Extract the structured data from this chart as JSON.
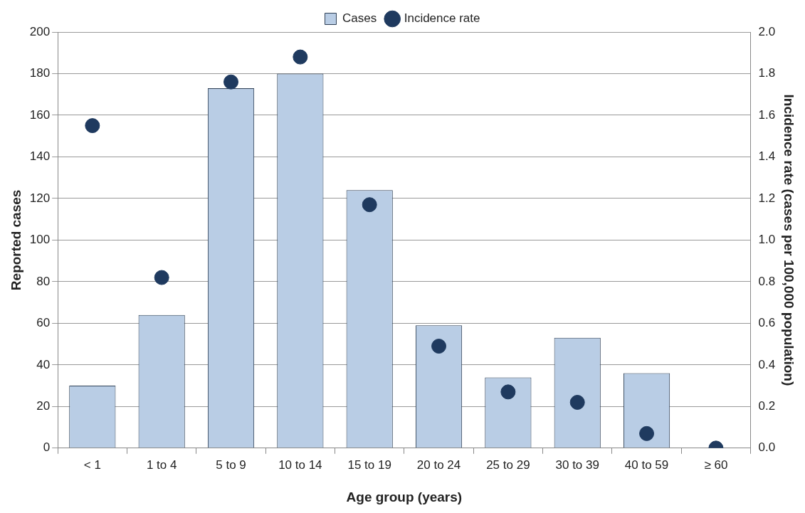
{
  "chart_data": {
    "type": "bar",
    "xlabel": "Age group (years)",
    "ylabel": "Reported cases",
    "y2label": "Incidence rate (cases per 100,000 population)",
    "categories": [
      "< 1",
      "1 to 4",
      "5 to 9",
      "10 to 14",
      "15 to 19",
      "20 to 24",
      "25 to 29",
      "30 to 39",
      "40 to 59",
      "≥ 60"
    ],
    "series": [
      {
        "name": "Cases",
        "color": "#b9cde5",
        "values": [
          30,
          64,
          173,
          180,
          124,
          59,
          34,
          53,
          36,
          0
        ]
      },
      {
        "name": "Incidence rate",
        "type": "scatter",
        "axis": "y2",
        "color": "#1f3a5f",
        "marker": "circle",
        "values": [
          1.55,
          0.82,
          1.76,
          1.88,
          1.17,
          0.49,
          0.27,
          0.22,
          0.07,
          0
        ]
      }
    ],
    "ylim": [
      0,
      200
    ],
    "yticks": [
      0,
      20,
      40,
      60,
      80,
      100,
      120,
      140,
      160,
      180,
      200
    ],
    "y2lim": [
      0,
      2
    ],
    "y2ticks": [
      {
        "value": 0,
        "label": "0.0"
      },
      {
        "value": 0.2,
        "label": "0.2"
      },
      {
        "value": 0.4,
        "label": "0.4"
      },
      {
        "value": 0.6,
        "label": "0.6"
      },
      {
        "value": 0.8,
        "label": "0.8"
      },
      {
        "value": 1,
        "label": "1.0"
      },
      {
        "value": 1.2,
        "label": "1.2"
      },
      {
        "value": 1.4,
        "label": "1.4"
      },
      {
        "value": 1.6,
        "label": "1.6"
      },
      {
        "value": 1.8,
        "label": "1.8"
      },
      {
        "value": 2,
        "label": "2.0"
      }
    ],
    "grid": "y",
    "legend": "top"
  }
}
